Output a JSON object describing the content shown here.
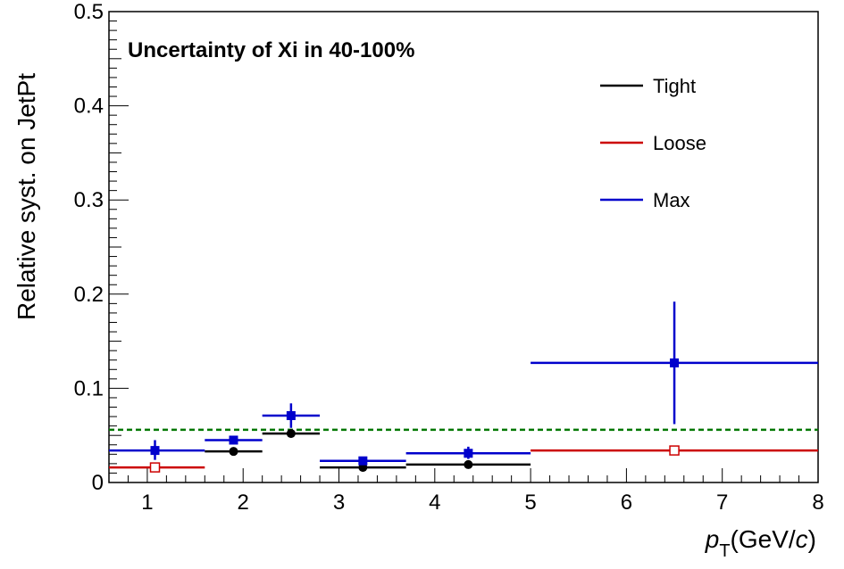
{
  "chart_data": {
    "type": "scatter",
    "title": "Uncertainty of Xi in 40-100%",
    "xlabel": {
      "main": "p",
      "sub": "T",
      "unit_pre": "(GeV/",
      "unit_it": "c",
      "unit_post": ")"
    },
    "ylabel": "Relative syst. on JetPt",
    "xlim": [
      0.6,
      8
    ],
    "ylim": [
      0,
      0.5
    ],
    "x_ticks": [
      1,
      2,
      3,
      4,
      5,
      6,
      7,
      8
    ],
    "y_ticks": [
      0,
      0.1,
      0.2,
      0.3,
      0.4,
      0.5
    ],
    "y_tick_labels": [
      "0",
      "0.1",
      "0.2",
      "0.3",
      "0.4",
      "0.5"
    ],
    "grid": false,
    "legend_position": "top-right",
    "reference_line": {
      "y": 0.056,
      "color": "#007700",
      "style": "dashed"
    },
    "series": [
      {
        "name": "Tight",
        "color": "#000000",
        "marker": "filled-circle",
        "points": [
          {
            "x": 1.9,
            "xlo": 1.6,
            "xhi": 2.2,
            "y": 0.033,
            "ylo": 0.033,
            "yhi": 0.033
          },
          {
            "x": 2.5,
            "xlo": 2.2,
            "xhi": 2.8,
            "y": 0.052,
            "ylo": 0.052,
            "yhi": 0.052
          },
          {
            "x": 3.25,
            "xlo": 2.8,
            "xhi": 3.7,
            "y": 0.016,
            "ylo": 0.016,
            "yhi": 0.016
          },
          {
            "x": 4.35,
            "xlo": 3.7,
            "xhi": 5.0,
            "y": 0.019,
            "ylo": 0.019,
            "yhi": 0.019
          }
        ]
      },
      {
        "name": "Loose",
        "color": "#cc0000",
        "marker": "open-square",
        "points": [
          {
            "x": 1.08,
            "xlo": 0.6,
            "xhi": 1.6,
            "y": 0.016,
            "ylo": 0.016,
            "yhi": 0.016
          },
          {
            "x": 6.5,
            "xlo": 5.0,
            "xhi": 8.0,
            "y": 0.034,
            "ylo": 0.034,
            "yhi": 0.034
          }
        ]
      },
      {
        "name": "Max",
        "color": "#0000cc",
        "marker": "filled-square",
        "points": [
          {
            "x": 1.08,
            "xlo": 0.6,
            "xhi": 1.6,
            "y": 0.034,
            "ylo": 0.024,
            "yhi": 0.045
          },
          {
            "x": 1.9,
            "xlo": 1.6,
            "xhi": 2.2,
            "y": 0.045,
            "ylo": 0.045,
            "yhi": 0.045
          },
          {
            "x": 2.5,
            "xlo": 2.2,
            "xhi": 2.8,
            "y": 0.071,
            "ylo": 0.058,
            "yhi": 0.084
          },
          {
            "x": 3.25,
            "xlo": 2.8,
            "xhi": 3.7,
            "y": 0.023,
            "ylo": 0.023,
            "yhi": 0.023
          },
          {
            "x": 4.35,
            "xlo": 3.7,
            "xhi": 5.0,
            "y": 0.031,
            "ylo": 0.025,
            "yhi": 0.038
          },
          {
            "x": 6.5,
            "xlo": 5.0,
            "xhi": 8.0,
            "y": 0.127,
            "ylo": 0.062,
            "yhi": 0.192
          }
        ]
      }
    ],
    "legend": [
      "Tight",
      "Loose",
      "Max"
    ]
  }
}
